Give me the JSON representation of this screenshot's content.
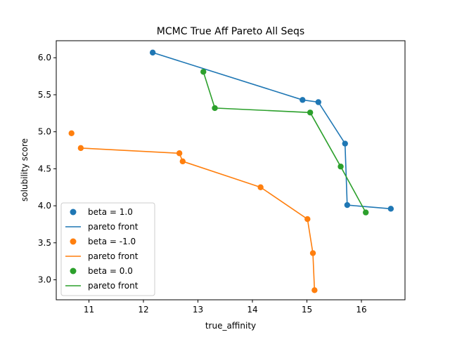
{
  "chart_data": {
    "type": "scatter",
    "title": "MCMC True Aff Pareto All Seqs",
    "xlabel": "true_affinity",
    "ylabel": "solubility score",
    "xlim": [
      10.4,
      16.8
    ],
    "ylim": [
      2.73,
      6.23
    ],
    "xticks": [
      11,
      12,
      13,
      14,
      15,
      16
    ],
    "yticks": [
      3.0,
      3.5,
      4.0,
      4.5,
      5.0,
      5.5,
      6.0
    ],
    "xtick_labels": [
      "11",
      "12",
      "13",
      "14",
      "15",
      "16"
    ],
    "ytick_labels": [
      "3.0",
      "3.5",
      "4.0",
      "4.5",
      "5.0",
      "5.5",
      "6.0"
    ],
    "grid": false,
    "legend_position": "lower-left",
    "series": [
      {
        "name": "beta = 1.0",
        "line_name": "pareto front",
        "color": "#1f77b4",
        "points": [
          {
            "x": 12.17,
            "y": 6.07
          },
          {
            "x": 14.92,
            "y": 5.43
          },
          {
            "x": 15.21,
            "y": 5.4
          },
          {
            "x": 15.7,
            "y": 4.84
          },
          {
            "x": 15.74,
            "y": 4.01
          },
          {
            "x": 16.54,
            "y": 3.96
          }
        ],
        "front": [
          {
            "x": 12.17,
            "y": 6.07
          },
          {
            "x": 14.92,
            "y": 5.43
          },
          {
            "x": 15.21,
            "y": 5.4
          },
          {
            "x": 15.7,
            "y": 4.84
          },
          {
            "x": 15.74,
            "y": 4.01
          },
          {
            "x": 16.54,
            "y": 3.96
          }
        ]
      },
      {
        "name": "beta = -1.0",
        "line_name": "pareto front",
        "color": "#ff7f0e",
        "points": [
          {
            "x": 10.68,
            "y": 4.98
          },
          {
            "x": 10.85,
            "y": 4.78
          },
          {
            "x": 12.66,
            "y": 4.71
          },
          {
            "x": 12.72,
            "y": 4.6
          },
          {
            "x": 14.15,
            "y": 4.25
          },
          {
            "x": 15.01,
            "y": 3.82
          },
          {
            "x": 15.11,
            "y": 3.36
          },
          {
            "x": 15.14,
            "y": 2.86
          }
        ],
        "front": [
          {
            "x": 10.85,
            "y": 4.78
          },
          {
            "x": 12.66,
            "y": 4.71
          },
          {
            "x": 12.72,
            "y": 4.6
          },
          {
            "x": 14.15,
            "y": 4.25
          },
          {
            "x": 15.01,
            "y": 3.82
          },
          {
            "x": 15.11,
            "y": 3.36
          },
          {
            "x": 15.14,
            "y": 2.86
          }
        ]
      },
      {
        "name": "beta = 0.0",
        "line_name": "pareto front",
        "color": "#2ca02c",
        "points": [
          {
            "x": 13.1,
            "y": 5.81
          },
          {
            "x": 13.31,
            "y": 5.32
          },
          {
            "x": 15.06,
            "y": 5.26
          },
          {
            "x": 15.62,
            "y": 4.53
          },
          {
            "x": 16.08,
            "y": 3.91
          }
        ],
        "front": [
          {
            "x": 13.1,
            "y": 5.81
          },
          {
            "x": 13.31,
            "y": 5.32
          },
          {
            "x": 15.06,
            "y": 5.26
          },
          {
            "x": 15.62,
            "y": 4.53
          },
          {
            "x": 16.08,
            "y": 3.91
          }
        ]
      }
    ]
  }
}
